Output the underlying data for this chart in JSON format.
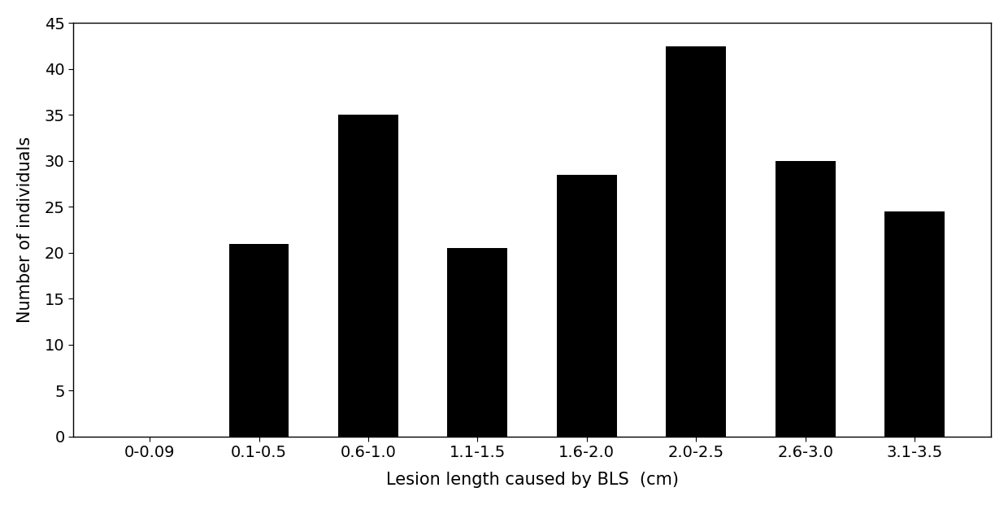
{
  "categories": [
    "0-0.09",
    "0.1-0.5",
    "0.6-1.0",
    "1.1-1.5",
    "1.6-2.0",
    "2.0-2.5",
    "2.6-3.0",
    "3.1-3.5"
  ],
  "x_labels": [
    "0-0.09",
    "0.1-0.5",
    "0.6-1.0",
    "1.1-1.5",
    "1.6-2.0",
    "2.0-2.5",
    "2.6-3.0",
    "3.1-3.5"
  ],
  "values": [
    0,
    21,
    35,
    20.5,
    28.5,
    42.5,
    30,
    24.5
  ],
  "bar_color": "#000000",
  "xlabel": "Lesion length caused by BLS  (cm)",
  "ylabel": "Number of individuals",
  "ylim": [
    0,
    45
  ],
  "yticks": [
    0,
    5,
    10,
    15,
    20,
    25,
    30,
    35,
    40,
    45
  ],
  "bar_width": 0.55,
  "background_color": "#ffffff",
  "tick_fontsize": 14,
  "label_fontsize": 15
}
